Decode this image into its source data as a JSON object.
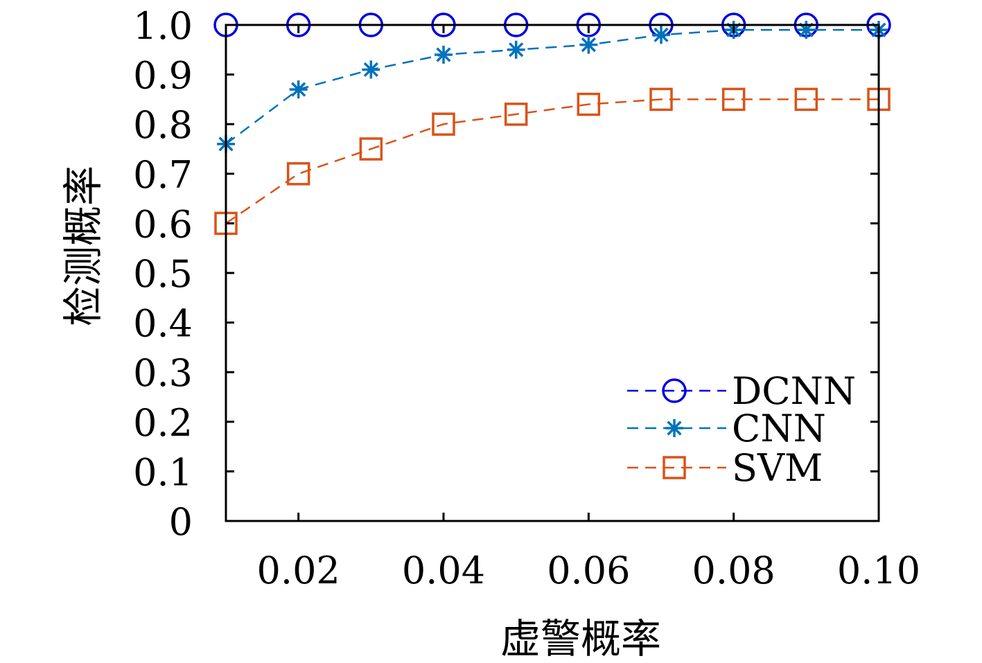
{
  "chart_data": {
    "type": "line",
    "xlabel": "虚警概率",
    "ylabel": "检测概率",
    "xlim": [
      0.01,
      0.1
    ],
    "ylim": [
      0,
      1.0
    ],
    "xticks": [
      0.02,
      0.04,
      0.06,
      0.08,
      0.1
    ],
    "xtick_labels": [
      "0.02",
      "0.04",
      "0.06",
      "0.08",
      "0.10"
    ],
    "yticks": [
      0,
      0.1,
      0.2,
      0.3,
      0.4,
      0.5,
      0.6,
      0.7,
      0.8,
      0.9,
      1.0
    ],
    "ytick_labels": [
      "0",
      "0.1",
      "0.2",
      "0.3",
      "0.4",
      "0.5",
      "0.6",
      "0.7",
      "0.8",
      "0.9",
      "1.0"
    ],
    "grid": false,
    "legend_position": "bottom-right",
    "x": [
      0.01,
      0.02,
      0.03,
      0.04,
      0.05,
      0.06,
      0.07,
      0.08,
      0.09,
      0.1
    ],
    "series": [
      {
        "name": "DCNN",
        "color": "#0000dd",
        "marker": "circle",
        "values": [
          1.0,
          1.0,
          1.0,
          1.0,
          1.0,
          1.0,
          1.0,
          1.0,
          1.0,
          1.0
        ]
      },
      {
        "name": "CNN",
        "color": "#0072bd",
        "marker": "asterisk",
        "values": [
          0.76,
          0.87,
          0.91,
          0.94,
          0.95,
          0.96,
          0.98,
          0.99,
          0.99,
          0.99
        ]
      },
      {
        "name": "SVM",
        "color": "#d95319",
        "marker": "square",
        "values": [
          0.6,
          0.7,
          0.75,
          0.8,
          0.82,
          0.84,
          0.85,
          0.85,
          0.85,
          0.85
        ]
      }
    ]
  }
}
